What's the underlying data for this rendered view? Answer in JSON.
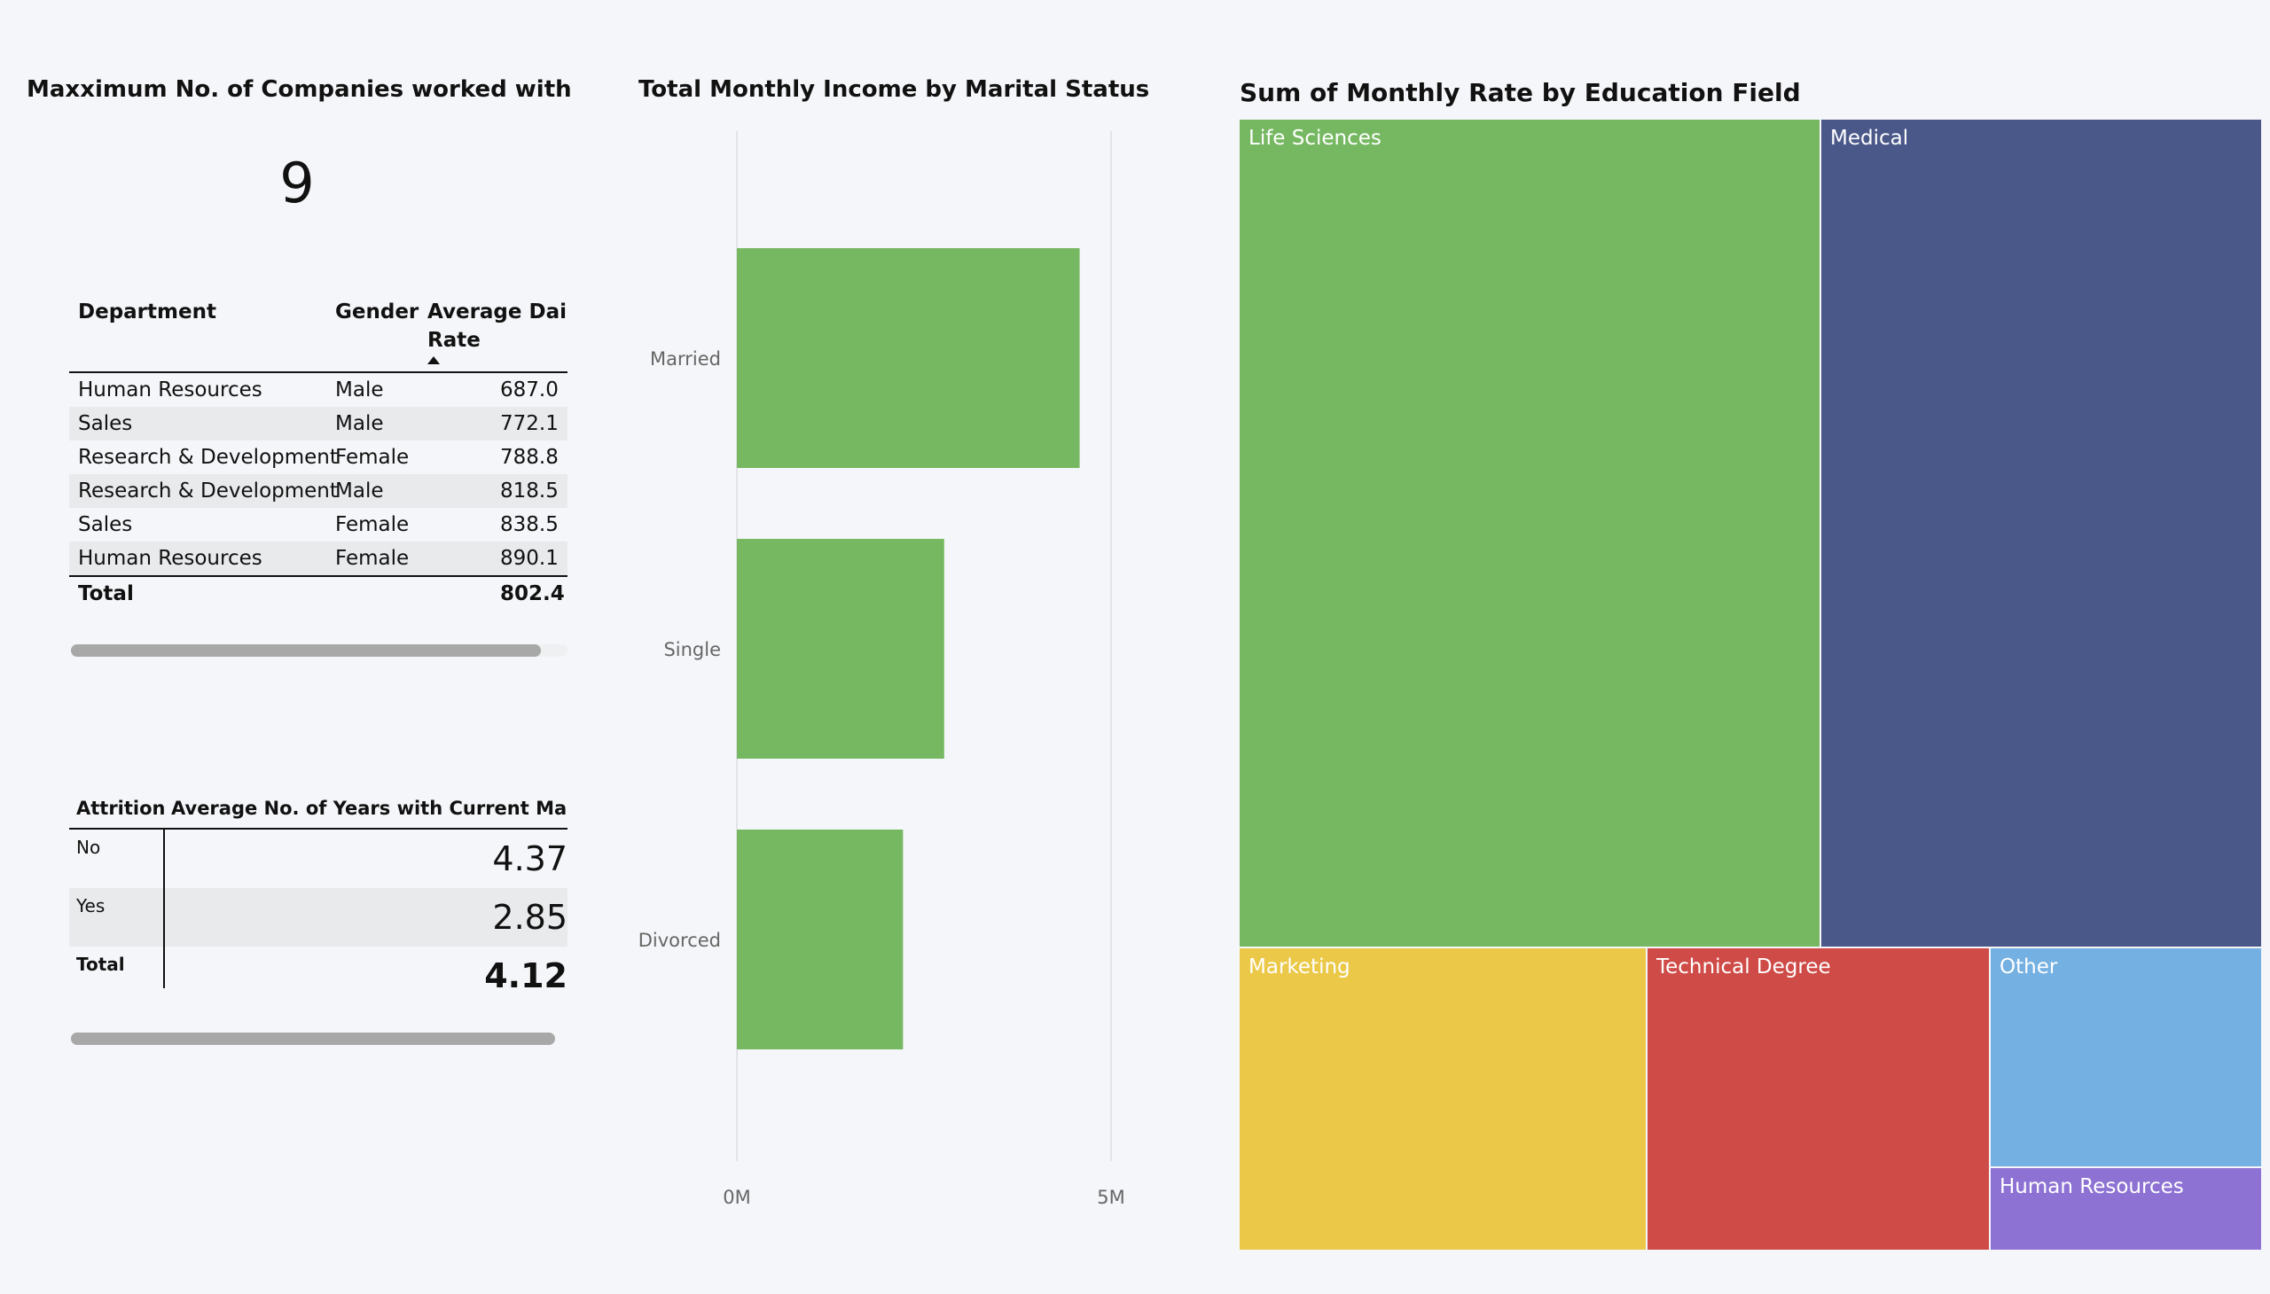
{
  "kpi": {
    "title": "Maxximum No. of Companies worked with",
    "value": "9"
  },
  "dept_table": {
    "headers": {
      "department": "Department",
      "gender": "Gender",
      "rate_line1": "Average Daily",
      "rate_line2": "Rate"
    },
    "rows": [
      {
        "department": "Human Resources",
        "gender": "Male",
        "rate": "687.0"
      },
      {
        "department": "Sales",
        "gender": "Male",
        "rate": "772.1"
      },
      {
        "department": "Research & Development",
        "gender": "Female",
        "rate": "788.8"
      },
      {
        "department": "Research & Development",
        "gender": "Male",
        "rate": "818.5"
      },
      {
        "department": "Sales",
        "gender": "Female",
        "rate": "838.5"
      },
      {
        "department": "Human Resources",
        "gender": "Female",
        "rate": "890.1"
      }
    ],
    "total_label": "Total",
    "total_value": "802.4"
  },
  "attrition_table": {
    "headers": {
      "attrition": "Attrition",
      "value": "Average No. of Years with Current Manager:"
    },
    "rows": [
      {
        "label": "No",
        "value": "4.37"
      },
      {
        "label": "Yes",
        "value": "2.85"
      }
    ],
    "total_label": "Total",
    "total_value": "4.12"
  },
  "chart_data": [
    {
      "type": "bar",
      "orientation": "horizontal",
      "title": "Total Monthly Income by Marital Status",
      "categories": [
        "Married",
        "Single",
        "Divorced"
      ],
      "values": [
        4.58,
        2.77,
        2.22
      ],
      "value_unit": "M",
      "xlim": [
        0,
        5
      ],
      "x_ticks": [
        "0M",
        "5M"
      ],
      "color": "#76b862",
      "grid": true
    },
    {
      "type": "treemap",
      "title": "Sum of Monthly Rate by Education Field",
      "items": [
        {
          "label": "Life Sciences",
          "color": "#76b862"
        },
        {
          "label": "Medical",
          "color": "#4a5789"
        },
        {
          "label": "Marketing",
          "color": "#ebc847"
        },
        {
          "label": "Technical Degree",
          "color": "#cf4b47"
        },
        {
          "label": "Other",
          "color": "#74b0e2"
        },
        {
          "label": "Human Resources",
          "color": "#8d72d4"
        }
      ]
    }
  ]
}
